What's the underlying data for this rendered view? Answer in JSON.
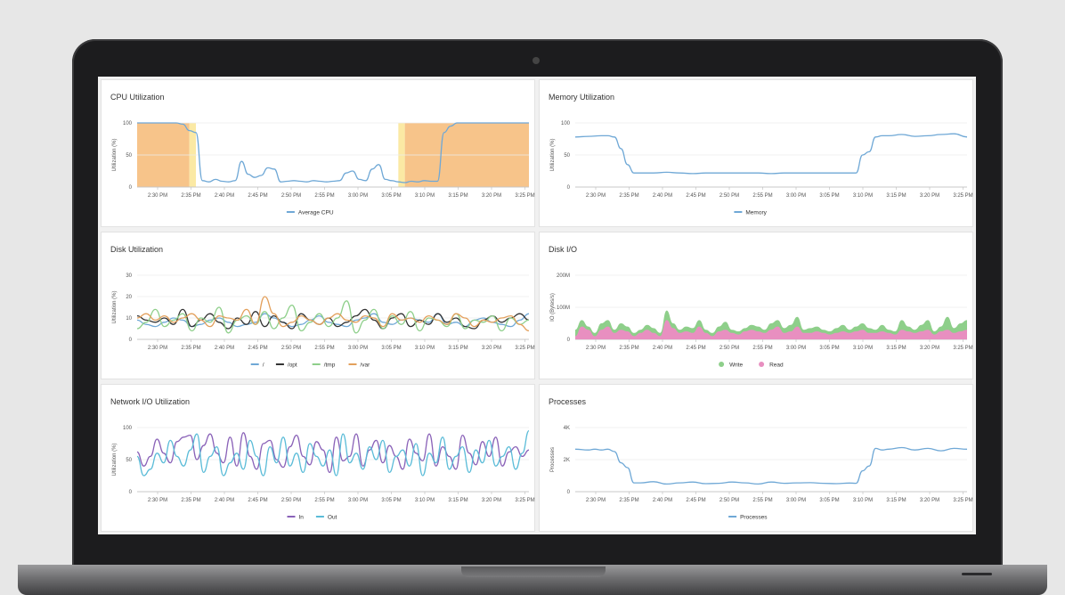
{
  "time_ticks": [
    "2:30 PM",
    "2:35 PM",
    "2:40 PM",
    "2:45 PM",
    "2:50 PM",
    "2:55 PM",
    "3:00 PM",
    "3:05 PM",
    "3:10 PM",
    "3:15 PM",
    "3:20 PM",
    "3:25 PM"
  ],
  "colors": {
    "blue": "#6fa8d6",
    "dark": "#333333",
    "green": "#8ecf8a",
    "orange": "#e3a05c",
    "purple": "#8a62b8",
    "cyan": "#5bbcd8",
    "pink": "#e88fc0",
    "area_orange": "#f7c48a",
    "area_yellow": "#fbe9a4"
  },
  "panels": [
    {
      "title": "CPU Utilization"
    },
    {
      "title": "Memory Utilization"
    },
    {
      "title": "Disk Utilization"
    },
    {
      "title": "Disk I/O"
    },
    {
      "title": "Network I/O Utilization"
    },
    {
      "title": "Processes"
    }
  ],
  "chart_data": [
    {
      "type": "line",
      "title": "CPU Utilization",
      "ylabel": "Utilization (%)",
      "ylim": [
        0,
        100
      ],
      "yticks": [
        "100",
        "50",
        "0"
      ],
      "x_range": [
        "2:27 PM",
        "3:27 PM"
      ],
      "highlight_bands": [
        {
          "from": "2:27 PM",
          "to": "2:35 PM",
          "color": "#f7c48a"
        },
        {
          "from": "2:35 PM",
          "to": "2:36 PM",
          "color": "#fbe9a4"
        },
        {
          "from": "3:07 PM",
          "to": "3:08 PM",
          "color": "#fbe9a4"
        },
        {
          "from": "3:08 PM",
          "to": "3:27 PM",
          "color": "#f7c48a"
        }
      ],
      "series": [
        {
          "name": "Average CPU",
          "x_minutes": [
            0,
            1,
            2,
            3,
            4,
            5,
            6,
            7,
            8,
            9,
            10,
            11,
            12,
            13,
            14,
            15,
            16,
            17,
            18,
            19,
            20,
            21,
            22,
            23,
            24,
            25,
            26,
            27,
            28,
            29,
            30,
            31,
            32,
            33,
            34,
            35,
            36,
            37,
            38,
            39,
            40,
            41,
            42,
            43,
            44,
            45,
            46,
            47,
            48,
            49,
            50,
            51,
            52,
            53,
            54,
            55,
            56,
            57,
            58,
            59,
            60
          ],
          "values": [
            100,
            100,
            100,
            100,
            100,
            100,
            100,
            98,
            88,
            85,
            10,
            8,
            12,
            9,
            8,
            10,
            40,
            20,
            15,
            18,
            30,
            28,
            8,
            9,
            10,
            9,
            8,
            10,
            9,
            8,
            9,
            10,
            22,
            25,
            12,
            10,
            28,
            35,
            12,
            10,
            8,
            7,
            9,
            8,
            10,
            9,
            9,
            85,
            95,
            100,
            100,
            100,
            100,
            100,
            100,
            100,
            100,
            100,
            100,
            100,
            100
          ]
        }
      ]
    },
    {
      "type": "line",
      "title": "Memory Utilization",
      "ylabel": "Utilization (%)",
      "ylim": [
        0,
        100
      ],
      "yticks": [
        "100",
        "50",
        "0"
      ],
      "series": [
        {
          "name": "Memory",
          "x_minutes": [
            0,
            2,
            4,
            5,
            6,
            7,
            8,
            9,
            10,
            12,
            14,
            16,
            18,
            20,
            22,
            24,
            26,
            28,
            30,
            32,
            34,
            36,
            38,
            40,
            42,
            43,
            44,
            45,
            46,
            47,
            48,
            50,
            52,
            54,
            56,
            58,
            60
          ],
          "values": [
            78,
            79,
            80,
            80,
            78,
            60,
            35,
            22,
            22,
            22,
            23,
            22,
            21,
            22,
            22,
            22,
            22,
            22,
            21,
            22,
            22,
            22,
            22,
            22,
            22,
            22,
            50,
            55,
            78,
            80,
            80,
            82,
            79,
            80,
            82,
            83,
            78
          ]
        }
      ]
    },
    {
      "type": "line",
      "title": "Disk Utilization",
      "ylabel": "Utilization (%)",
      "ylim": [
        0,
        30
      ],
      "yticks": [
        "30",
        "20",
        "10",
        "0"
      ],
      "series": [
        {
          "name": "/",
          "values": [
            9,
            7,
            6,
            8,
            10,
            9,
            6,
            7,
            9,
            10,
            8,
            6,
            7,
            8,
            12,
            10,
            8,
            6,
            7,
            9,
            11,
            8,
            7,
            6,
            9,
            10,
            12,
            8,
            7,
            9,
            10,
            9,
            8,
            12,
            7,
            8,
            6,
            9,
            10,
            8,
            7,
            6,
            9,
            12
          ]
        },
        {
          "name": "/opt",
          "values": [
            11,
            9,
            8,
            10,
            7,
            14,
            6,
            9,
            12,
            8,
            5,
            10,
            7,
            13,
            6,
            11,
            8,
            5,
            12,
            9,
            7,
            10,
            6,
            8,
            11,
            14,
            9,
            5,
            10,
            12,
            6,
            9,
            7,
            12,
            8,
            10,
            6,
            5,
            9,
            11,
            8,
            10,
            12,
            9
          ]
        },
        {
          "name": "/tmp",
          "values": [
            5,
            8,
            14,
            6,
            9,
            12,
            4,
            10,
            8,
            15,
            3,
            9,
            11,
            7,
            13,
            5,
            10,
            16,
            4,
            8,
            12,
            6,
            10,
            18,
            3,
            9,
            14,
            5,
            11,
            7,
            13,
            4,
            10,
            9,
            6,
            12,
            5,
            9,
            8,
            11,
            4,
            10,
            7,
            9
          ]
        },
        {
          "name": "/var",
          "values": [
            10,
            12,
            9,
            11,
            8,
            10,
            12,
            9,
            6,
            11,
            10,
            9,
            14,
            7,
            20,
            12,
            6,
            8,
            11,
            9,
            7,
            10,
            12,
            9,
            8,
            11,
            10,
            6,
            12,
            9,
            10,
            8,
            11,
            9,
            7,
            12,
            10,
            6,
            9,
            8,
            10,
            11,
            7,
            4
          ]
        }
      ]
    },
    {
      "type": "area",
      "title": "Disk I/O",
      "ylabel": "IO (Bytes/s)",
      "ylim": [
        0,
        200
      ],
      "yticks": [
        "200M",
        "100M",
        "0"
      ],
      "series": [
        {
          "name": "Write",
          "values": [
            30,
            60,
            40,
            20,
            50,
            60,
            30,
            50,
            40,
            20,
            30,
            45,
            35,
            20,
            90,
            50,
            30,
            40,
            35,
            60,
            30,
            20,
            40,
            55,
            30,
            25,
            35,
            45,
            40,
            30,
            50,
            60,
            35,
            45,
            70,
            30,
            35,
            40,
            30,
            25,
            35,
            45,
            30,
            40,
            50,
            35,
            30,
            45,
            30,
            25,
            60,
            40,
            30,
            45,
            60,
            25,
            40,
            70,
            35,
            50,
            60
          ]
        },
        {
          "name": "Read",
          "values": [
            10,
            40,
            30,
            10,
            30,
            40,
            20,
            30,
            25,
            10,
            20,
            30,
            20,
            10,
            60,
            35,
            20,
            25,
            20,
            40,
            20,
            10,
            25,
            30,
            20,
            15,
            25,
            30,
            25,
            20,
            30,
            40,
            20,
            25,
            40,
            20,
            20,
            25,
            20,
            15,
            20,
            25,
            20,
            25,
            30,
            20,
            20,
            25,
            20,
            15,
            30,
            25,
            20,
            25,
            30,
            15,
            25,
            30,
            20,
            25,
            30
          ]
        }
      ]
    },
    {
      "type": "line",
      "title": "Network I/O Utilization",
      "ylabel": "Utilization (%)",
      "ylim": [
        0,
        100
      ],
      "yticks": [
        "100",
        "50",
        "0"
      ],
      "series": [
        {
          "name": "In",
          "values": [
            62,
            40,
            55,
            82,
            60,
            45,
            78,
            85,
            88,
            50,
            72,
            90,
            60,
            45,
            85,
            40,
            92,
            55,
            35,
            75,
            80,
            50,
            38,
            70,
            88,
            55,
            42,
            78,
            65,
            30,
            85,
            48,
            55,
            90,
            40,
            65,
            80,
            45,
            72,
            55,
            35,
            82,
            60,
            48,
            90,
            40,
            70,
            55,
            35,
            88,
            60,
            42,
            78,
            55,
            85,
            40,
            62,
            70,
            55,
            65
          ]
        },
        {
          "name": "Out",
          "values": [
            55,
            25,
            35,
            60,
            45,
            80,
            55,
            40,
            65,
            90,
            30,
            55,
            70,
            25,
            45,
            60,
            35,
            80,
            55,
            25,
            70,
            45,
            85,
            40,
            60,
            30,
            75,
            55,
            40,
            65,
            25,
            90,
            45,
            60,
            35,
            70,
            50,
            80,
            30,
            55,
            65,
            40,
            75,
            25,
            60,
            45,
            85,
            35,
            55,
            70,
            30,
            65,
            45,
            80,
            40,
            55,
            70,
            35,
            60,
            95
          ]
        }
      ]
    },
    {
      "type": "line",
      "title": "Processes",
      "ylabel": "Processes",
      "ylim": [
        0,
        4000
      ],
      "yticks": [
        "4K",
        "2K",
        "0"
      ],
      "series": [
        {
          "name": "Processes",
          "x_minutes": [
            0,
            2,
            3,
            4,
            5,
            6,
            7,
            8,
            9,
            10,
            12,
            14,
            16,
            18,
            20,
            22,
            24,
            26,
            28,
            30,
            32,
            34,
            36,
            38,
            40,
            42,
            43,
            44,
            45,
            46,
            47,
            48,
            50,
            52,
            54,
            56,
            58,
            60
          ],
          "values": [
            2650,
            2600,
            2650,
            2600,
            2650,
            2500,
            1800,
            1500,
            550,
            550,
            620,
            480,
            550,
            600,
            500,
            520,
            600,
            550,
            480,
            600,
            520,
            550,
            560,
            520,
            500,
            540,
            520,
            1300,
            1600,
            2700,
            2600,
            2650,
            2750,
            2600,
            2700,
            2550,
            2700,
            2650
          ]
        }
      ]
    }
  ]
}
